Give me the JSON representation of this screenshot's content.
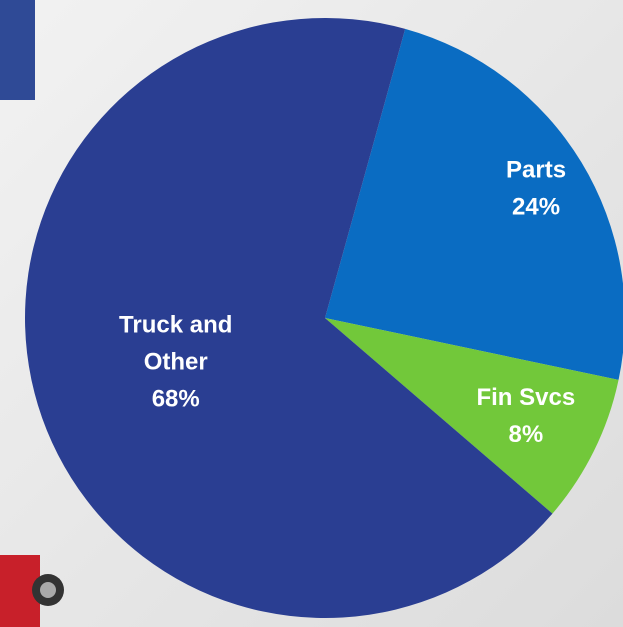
{
  "chart_data": {
    "type": "pie",
    "categories": [
      "Parts",
      "Fin Svcs",
      "Truck and Other"
    ],
    "values": [
      24,
      8,
      68
    ],
    "value_labels": [
      "24%",
      "8%",
      "68%"
    ],
    "colors": [
      "#0a6cc2",
      "#72c83a",
      "#2a3e92"
    ]
  }
}
